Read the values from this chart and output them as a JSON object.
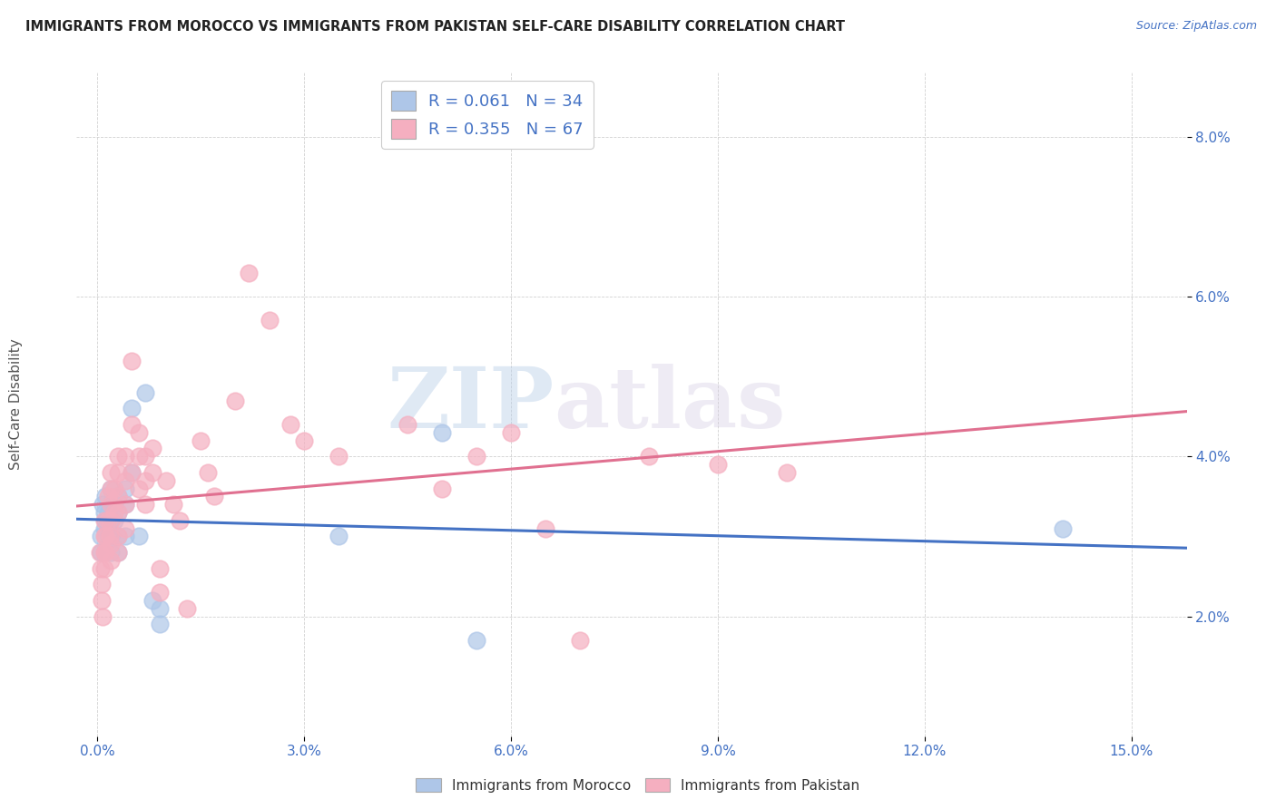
{
  "title": "IMMIGRANTS FROM MOROCCO VS IMMIGRANTS FROM PAKISTAN SELF-CARE DISABILITY CORRELATION CHART",
  "source": "Source: ZipAtlas.com",
  "ylabel": "Self-Care Disability",
  "xlabel_ticks": [
    "0.0%",
    "3.0%",
    "6.0%",
    "9.0%",
    "12.0%",
    "15.0%"
  ],
  "xlabel_vals": [
    0.0,
    0.03,
    0.06,
    0.09,
    0.12,
    0.15
  ],
  "ylabel_ticks": [
    "2.0%",
    "4.0%",
    "6.0%",
    "8.0%"
  ],
  "ylabel_vals": [
    0.02,
    0.04,
    0.06,
    0.08
  ],
  "xlim": [
    -0.003,
    0.158
  ],
  "ylim": [
    0.005,
    0.088
  ],
  "morocco_R": 0.061,
  "morocco_N": 34,
  "pakistan_R": 0.355,
  "pakistan_N": 67,
  "morocco_color": "#aec6e8",
  "pakistan_color": "#f5afc0",
  "morocco_line_color": "#4472c4",
  "pakistan_line_color": "#e07090",
  "legend_text_color": "#4472c4",
  "background_color": "#ffffff",
  "watermark_zip": "ZIP",
  "watermark_atlas": "atlas",
  "morocco_x": [
    0.0005,
    0.0005,
    0.0008,
    0.001,
    0.001,
    0.0012,
    0.0012,
    0.0015,
    0.0015,
    0.002,
    0.002,
    0.002,
    0.002,
    0.002,
    0.0025,
    0.0025,
    0.003,
    0.003,
    0.003,
    0.003,
    0.004,
    0.004,
    0.004,
    0.005,
    0.005,
    0.006,
    0.007,
    0.008,
    0.009,
    0.009,
    0.035,
    0.05,
    0.055,
    0.14
  ],
  "morocco_y": [
    0.03,
    0.028,
    0.034,
    0.033,
    0.031,
    0.035,
    0.032,
    0.033,
    0.03,
    0.036,
    0.034,
    0.032,
    0.03,
    0.028,
    0.034,
    0.032,
    0.035,
    0.033,
    0.03,
    0.028,
    0.036,
    0.034,
    0.03,
    0.046,
    0.038,
    0.03,
    0.048,
    0.022,
    0.021,
    0.019,
    0.03,
    0.043,
    0.017,
    0.031
  ],
  "pakistan_x": [
    0.0004,
    0.0005,
    0.0006,
    0.0007,
    0.0008,
    0.001,
    0.001,
    0.001,
    0.001,
    0.0012,
    0.0012,
    0.0015,
    0.0015,
    0.0018,
    0.002,
    0.002,
    0.002,
    0.002,
    0.002,
    0.002,
    0.0025,
    0.0025,
    0.003,
    0.003,
    0.003,
    0.003,
    0.003,
    0.003,
    0.004,
    0.004,
    0.004,
    0.004,
    0.005,
    0.005,
    0.005,
    0.006,
    0.006,
    0.006,
    0.007,
    0.007,
    0.007,
    0.008,
    0.008,
    0.009,
    0.009,
    0.01,
    0.011,
    0.012,
    0.013,
    0.015,
    0.016,
    0.017,
    0.02,
    0.022,
    0.025,
    0.028,
    0.03,
    0.035,
    0.045,
    0.05,
    0.055,
    0.06,
    0.065,
    0.07,
    0.08,
    0.09,
    0.1
  ],
  "pakistan_y": [
    0.028,
    0.026,
    0.024,
    0.022,
    0.02,
    0.032,
    0.03,
    0.028,
    0.026,
    0.03,
    0.028,
    0.035,
    0.032,
    0.03,
    0.038,
    0.036,
    0.034,
    0.032,
    0.029,
    0.027,
    0.036,
    0.033,
    0.04,
    0.038,
    0.035,
    0.033,
    0.03,
    0.028,
    0.04,
    0.037,
    0.034,
    0.031,
    0.052,
    0.044,
    0.038,
    0.043,
    0.04,
    0.036,
    0.04,
    0.037,
    0.034,
    0.041,
    0.038,
    0.026,
    0.023,
    0.037,
    0.034,
    0.032,
    0.021,
    0.042,
    0.038,
    0.035,
    0.047,
    0.063,
    0.057,
    0.044,
    0.042,
    0.04,
    0.044,
    0.036,
    0.04,
    0.043,
    0.031,
    0.017,
    0.04,
    0.039,
    0.038
  ]
}
